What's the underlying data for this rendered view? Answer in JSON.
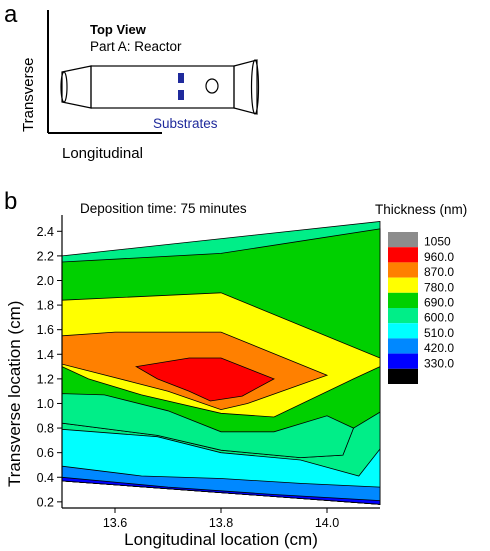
{
  "panel_a": {
    "letter": "a",
    "title": "Top View",
    "subtitle": "Part A: Reactor",
    "vertical_axis_label": "Transverse",
    "horizontal_axis_label": "Longitudinal",
    "substrates_label": "Substrates",
    "colors": {
      "substrate": "#1f2a9c",
      "substrates_text": "#1f2a9c"
    }
  },
  "panel_b": {
    "letter": "b",
    "annotation": "Deposition time: 75 minutes",
    "legend_title": "Thickness (nm)"
  },
  "chart_data": {
    "type": "contour",
    "xlabel": "Longitudinal location (cm)",
    "ylabel": "Transverse location (cm)",
    "xlim": [
      13.5,
      14.1
    ],
    "ylim": [
      0.15,
      2.5
    ],
    "x_ticks": [
      13.6,
      13.8,
      14.0
    ],
    "x_tick_labels": [
      "13.6",
      "13.8",
      "14.0"
    ],
    "y_ticks": [
      0.2,
      0.4,
      0.6,
      0.8,
      1.0,
      1.2,
      1.4,
      1.6,
      1.8,
      2.0,
      2.2,
      2.4
    ],
    "y_tick_labels": [
      "0.2",
      "0.4",
      "0.6",
      "0.8",
      "1.0",
      "1.2",
      "1.4",
      "1.6",
      "1.8",
      "2.0",
      "2.2",
      "2.4"
    ],
    "legend": [
      {
        "label": "1050",
        "color": "#8c8c8c"
      },
      {
        "label": "960.0",
        "color": "#ff0000"
      },
      {
        "label": "870.0",
        "color": "#ff8000"
      },
      {
        "label": "780.0",
        "color": "#ffff00"
      },
      {
        "label": "690.0",
        "color": "#00d000"
      },
      {
        "label": "600.0",
        "color": "#00ee88"
      },
      {
        "label": "510.0",
        "color": "#00ffff"
      },
      {
        "label": "420.0",
        "color": "#0088ff"
      },
      {
        "label": "330.0",
        "color": "#0000ff"
      },
      {
        "label": "",
        "color": "#000000"
      }
    ],
    "regions": [
      {
        "level": "600.0",
        "color": "#00ee88",
        "points": [
          [
            13.5,
            2.2
          ],
          [
            14.1,
            2.48
          ],
          [
            14.1,
            0.18
          ],
          [
            13.5,
            0.37
          ]
        ]
      },
      {
        "level": "690.0",
        "color": "#00d000",
        "points": [
          [
            13.5,
            2.15
          ],
          [
            13.8,
            2.22
          ],
          [
            14.1,
            2.42
          ],
          [
            14.1,
            0.18
          ],
          [
            13.5,
            0.37
          ]
        ]
      },
      {
        "level": "780.0",
        "color": "#ffff00",
        "points": [
          [
            13.5,
            1.84
          ],
          [
            13.8,
            1.9
          ],
          [
            14.1,
            1.37
          ],
          [
            14.1,
            0.18
          ],
          [
            13.5,
            0.37
          ]
        ]
      },
      {
        "level": "600.0",
        "color": "#00ee88",
        "points": [
          [
            13.5,
            1.1
          ],
          [
            13.55,
            1.09
          ],
          [
            13.68,
            0.96
          ],
          [
            13.8,
            0.78
          ],
          [
            13.9,
            0.8
          ],
          [
            14.02,
            0.94
          ],
          [
            14.1,
            1.23
          ],
          [
            14.1,
            0.18
          ],
          [
            13.5,
            0.37
          ]
        ]
      },
      {
        "level": "690.0",
        "color": "#00d000",
        "points": [
          [
            13.5,
            1.3
          ],
          [
            13.55,
            1.2
          ],
          [
            13.65,
            1.07
          ],
          [
            13.8,
            0.92
          ],
          [
            13.9,
            0.89
          ],
          [
            14.05,
            1.2
          ],
          [
            14.1,
            1.3
          ],
          [
            14.1,
            0.93
          ],
          [
            14.05,
            0.8
          ],
          [
            14.03,
            0.58
          ],
          [
            13.95,
            0.56
          ],
          [
            13.8,
            0.62
          ],
          [
            13.68,
            0.74
          ],
          [
            13.5,
            0.84
          ]
        ]
      },
      {
        "level": "600.0",
        "color": "#00ee88",
        "points": [
          [
            13.5,
            1.08
          ],
          [
            13.58,
            1.07
          ],
          [
            13.7,
            0.94
          ],
          [
            13.8,
            0.77
          ],
          [
            13.9,
            0.77
          ],
          [
            14.0,
            0.9
          ],
          [
            14.05,
            0.8
          ],
          [
            14.03,
            0.58
          ],
          [
            13.95,
            0.56
          ],
          [
            13.8,
            0.62
          ],
          [
            13.68,
            0.74
          ],
          [
            13.5,
            0.84
          ]
        ]
      },
      {
        "level": "510.0",
        "color": "#00ffff",
        "points": [
          [
            13.5,
            0.79
          ],
          [
            13.68,
            0.73
          ],
          [
            13.8,
            0.6
          ],
          [
            13.95,
            0.54
          ],
          [
            14.06,
            0.41
          ],
          [
            14.1,
            0.63
          ],
          [
            14.1,
            0.18
          ],
          [
            13.5,
            0.37
          ]
        ]
      },
      {
        "level": "420.0",
        "color": "#0088ff",
        "points": [
          [
            13.5,
            0.49
          ],
          [
            13.65,
            0.41
          ],
          [
            13.8,
            0.39
          ],
          [
            13.95,
            0.35
          ],
          [
            14.1,
            0.32
          ],
          [
            14.1,
            0.18
          ],
          [
            13.5,
            0.37
          ]
        ]
      },
      {
        "level": "330.0",
        "color": "#0000ff",
        "points": [
          [
            13.5,
            0.4
          ],
          [
            13.7,
            0.32
          ],
          [
            13.9,
            0.26
          ],
          [
            14.1,
            0.21
          ],
          [
            14.1,
            0.18
          ],
          [
            13.5,
            0.37
          ]
        ]
      },
      {
        "level": "870.0",
        "color": "#ff8000",
        "points": [
          [
            13.5,
            1.55
          ],
          [
            13.6,
            1.58
          ],
          [
            13.8,
            1.58
          ],
          [
            14.0,
            1.23
          ],
          [
            13.85,
            1.0
          ],
          [
            13.8,
            0.95
          ],
          [
            13.7,
            1.1
          ],
          [
            13.5,
            1.32
          ]
        ]
      },
      {
        "level": "960.0",
        "color": "#ff0000",
        "points": [
          [
            13.64,
            1.3
          ],
          [
            13.74,
            1.37
          ],
          [
            13.8,
            1.37
          ],
          [
            13.9,
            1.2
          ],
          [
            13.84,
            1.06
          ],
          [
            13.78,
            1.02
          ],
          [
            13.74,
            1.1
          ],
          [
            13.68,
            1.2
          ]
        ]
      }
    ]
  }
}
